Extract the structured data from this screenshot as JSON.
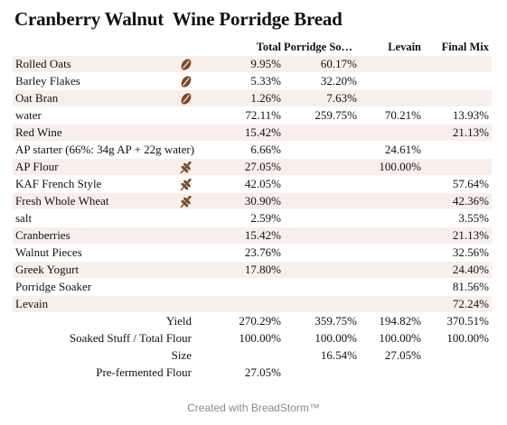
{
  "title": "Cranberry Walnut  Wine Porridge Bread",
  "columns": [
    "Total",
    "Porridge Soa…",
    "Levain",
    "Final Mix"
  ],
  "colors": {
    "row_shade": "#f8efeb",
    "icon_brown": "#7b4a2a"
  },
  "rows": [
    {
      "name": "Rolled Oats",
      "icon": "oat-seed-icon",
      "values": [
        "9.95%",
        "60.17%",
        "",
        ""
      ]
    },
    {
      "name": "Barley Flakes",
      "icon": "oat-seed-icon",
      "values": [
        "5.33%",
        "32.20%",
        "",
        ""
      ]
    },
    {
      "name": "Oat Bran",
      "icon": "oat-seed-icon",
      "values": [
        "1.26%",
        "7.63%",
        "",
        ""
      ]
    },
    {
      "name": "water",
      "icon": "",
      "values": [
        "72.11%",
        "259.75%",
        "70.21%",
        "13.93%"
      ]
    },
    {
      "name": "Red Wine",
      "icon": "",
      "values": [
        "15.42%",
        "",
        "",
        "21.13%"
      ]
    },
    {
      "name": "AP starter (66%: 34g AP + 22g water)",
      "icon": "",
      "values": [
        "6.66%",
        "",
        "24.61%",
        ""
      ]
    },
    {
      "name": "AP Flour",
      "icon": "wheat-icon",
      "values": [
        "27.05%",
        "",
        "100.00%",
        ""
      ]
    },
    {
      "name": "KAF French Style",
      "icon": "wheat-icon",
      "values": [
        "42.05%",
        "",
        "",
        "57.64%"
      ]
    },
    {
      "name": "Fresh Whole Wheat",
      "icon": "wheat-icon",
      "values": [
        "30.90%",
        "",
        "",
        "42.36%"
      ]
    },
    {
      "name": "salt",
      "icon": "",
      "values": [
        "2.59%",
        "",
        "",
        "3.55%"
      ]
    },
    {
      "name": "Cranberries",
      "icon": "",
      "values": [
        "15.42%",
        "",
        "",
        "21.13%"
      ]
    },
    {
      "name": "Walnut Pieces",
      "icon": "",
      "values": [
        "23.76%",
        "",
        "",
        "32.56%"
      ]
    },
    {
      "name": "Greek Yogurt",
      "icon": "",
      "values": [
        "17.80%",
        "",
        "",
        "24.40%"
      ]
    },
    {
      "name": "Porridge Soaker",
      "icon": "",
      "values": [
        "",
        "",
        "",
        "81.56%"
      ]
    },
    {
      "name": "Levain",
      "icon": "",
      "values": [
        "",
        "",
        "",
        "72.24%"
      ]
    }
  ],
  "summary": [
    {
      "label": "Yield",
      "values": [
        "270.29%",
        "359.75%",
        "194.82%",
        "370.51%"
      ]
    },
    {
      "label": "Soaked Stuff / Total Flour",
      "values": [
        "100.00%",
        "100.00%",
        "100.00%",
        "100.00%"
      ]
    },
    {
      "label": "Size",
      "values": [
        "",
        "16.54%",
        "27.05%",
        ""
      ]
    },
    {
      "label": "Pre-fermented Flour",
      "values": [
        "27.05%",
        "",
        "",
        ""
      ]
    }
  ],
  "footer": "Created with BreadStorm™"
}
